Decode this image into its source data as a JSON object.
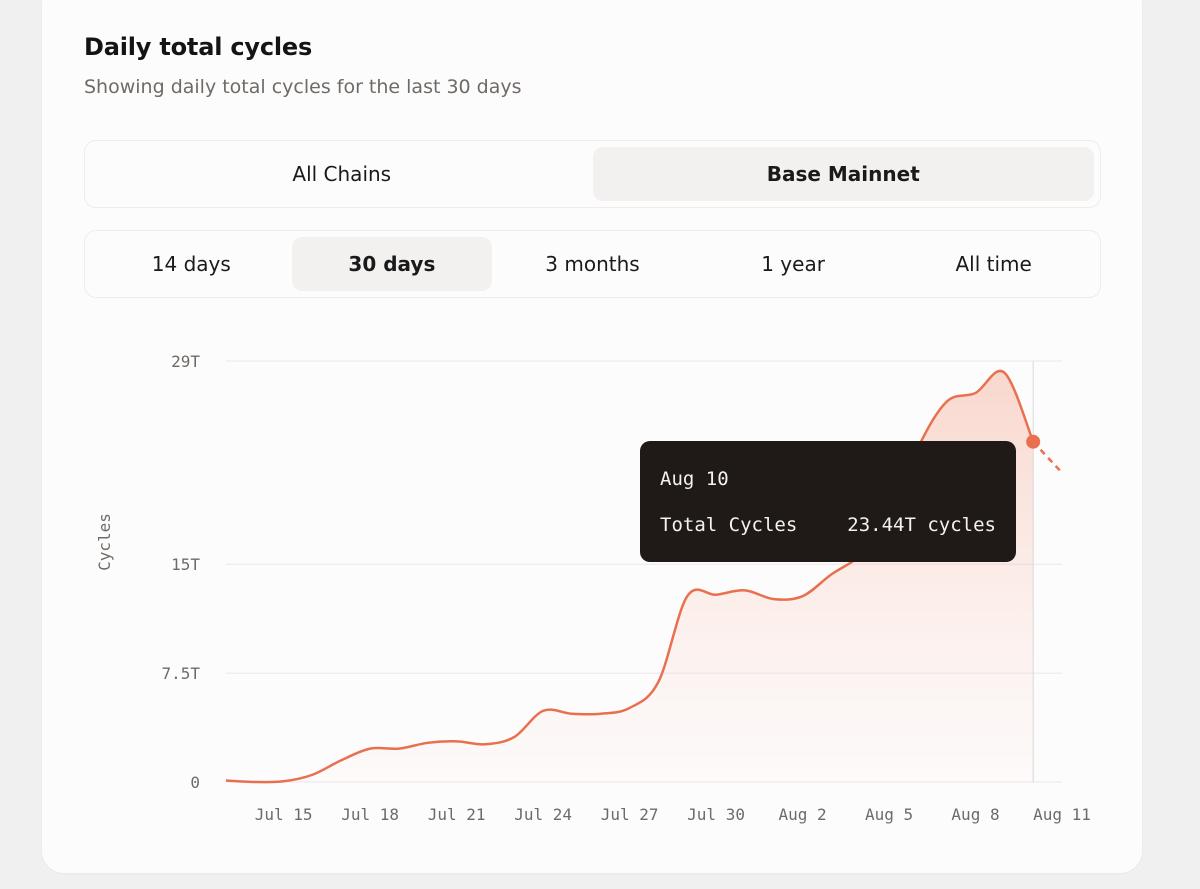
{
  "header": {
    "title": "Daily total cycles",
    "subtitle": "Showing daily total cycles for the last 30 days"
  },
  "chain_tabs": [
    {
      "label": "All Chains",
      "active": false
    },
    {
      "label": "Base Mainnet",
      "active": true
    }
  ],
  "range_tabs": [
    {
      "label": "14 days",
      "active": false
    },
    {
      "label": "30 days",
      "active": true
    },
    {
      "label": "3 months",
      "active": false
    },
    {
      "label": "1 year",
      "active": false
    },
    {
      "label": "All time",
      "active": false
    }
  ],
  "tooltip": {
    "date": "Aug 10",
    "label": "Total Cycles",
    "value": "23.44T cycles"
  },
  "colors": {
    "line": "#e9704f",
    "grid": "#ece4ee",
    "tooltip_bg": "#1f1a17"
  },
  "chart_data": {
    "type": "area",
    "ylabel": "Cycles",
    "y_ticks": [
      {
        "value": 0,
        "label": "0"
      },
      {
        "value": 7.5,
        "label": "7.5T"
      },
      {
        "value": 15,
        "label": "15T"
      },
      {
        "value": 29,
        "label": "29T"
      }
    ],
    "ylim": [
      0,
      29
    ],
    "x_ticks": [
      {
        "index": 2,
        "label": "Jul 15"
      },
      {
        "index": 5,
        "label": "Jul 18"
      },
      {
        "index": 8,
        "label": "Jul 21"
      },
      {
        "index": 11,
        "label": "Jul 24"
      },
      {
        "index": 14,
        "label": "Jul 27"
      },
      {
        "index": 17,
        "label": "Jul 30"
      },
      {
        "index": 20,
        "label": "Aug 2"
      },
      {
        "index": 23,
        "label": "Aug 5"
      },
      {
        "index": 26,
        "label": "Aug 8"
      },
      {
        "index": 29,
        "label": "Aug 11"
      }
    ],
    "x": [
      "Jul 13",
      "Jul 14",
      "Jul 15",
      "Jul 16",
      "Jul 17",
      "Jul 18",
      "Jul 19",
      "Jul 20",
      "Jul 21",
      "Jul 22",
      "Jul 23",
      "Jul 24",
      "Jul 25",
      "Jul 26",
      "Jul 27",
      "Jul 28",
      "Jul 29",
      "Jul 30",
      "Jul 31",
      "Aug 1",
      "Aug 2",
      "Aug 3",
      "Aug 4",
      "Aug 5",
      "Aug 6",
      "Aug 7",
      "Aug 8",
      "Aug 9",
      "Aug 10",
      "Aug 11"
    ],
    "series": [
      {
        "values": [
          0.1,
          0.0,
          0.05,
          0.5,
          1.5,
          2.3,
          2.3,
          2.7,
          2.8,
          2.6,
          3.1,
          4.9,
          4.7,
          4.7,
          5.1,
          6.9,
          12.8,
          12.9,
          13.2,
          12.6,
          12.8,
          14.3,
          15.6,
          17.9,
          23.0,
          26.2,
          26.8,
          28.2,
          23.44,
          21.3
        ]
      }
    ],
    "highlight_index": 28,
    "projected_from_index": 28,
    "grid": true,
    "legend": "none"
  }
}
